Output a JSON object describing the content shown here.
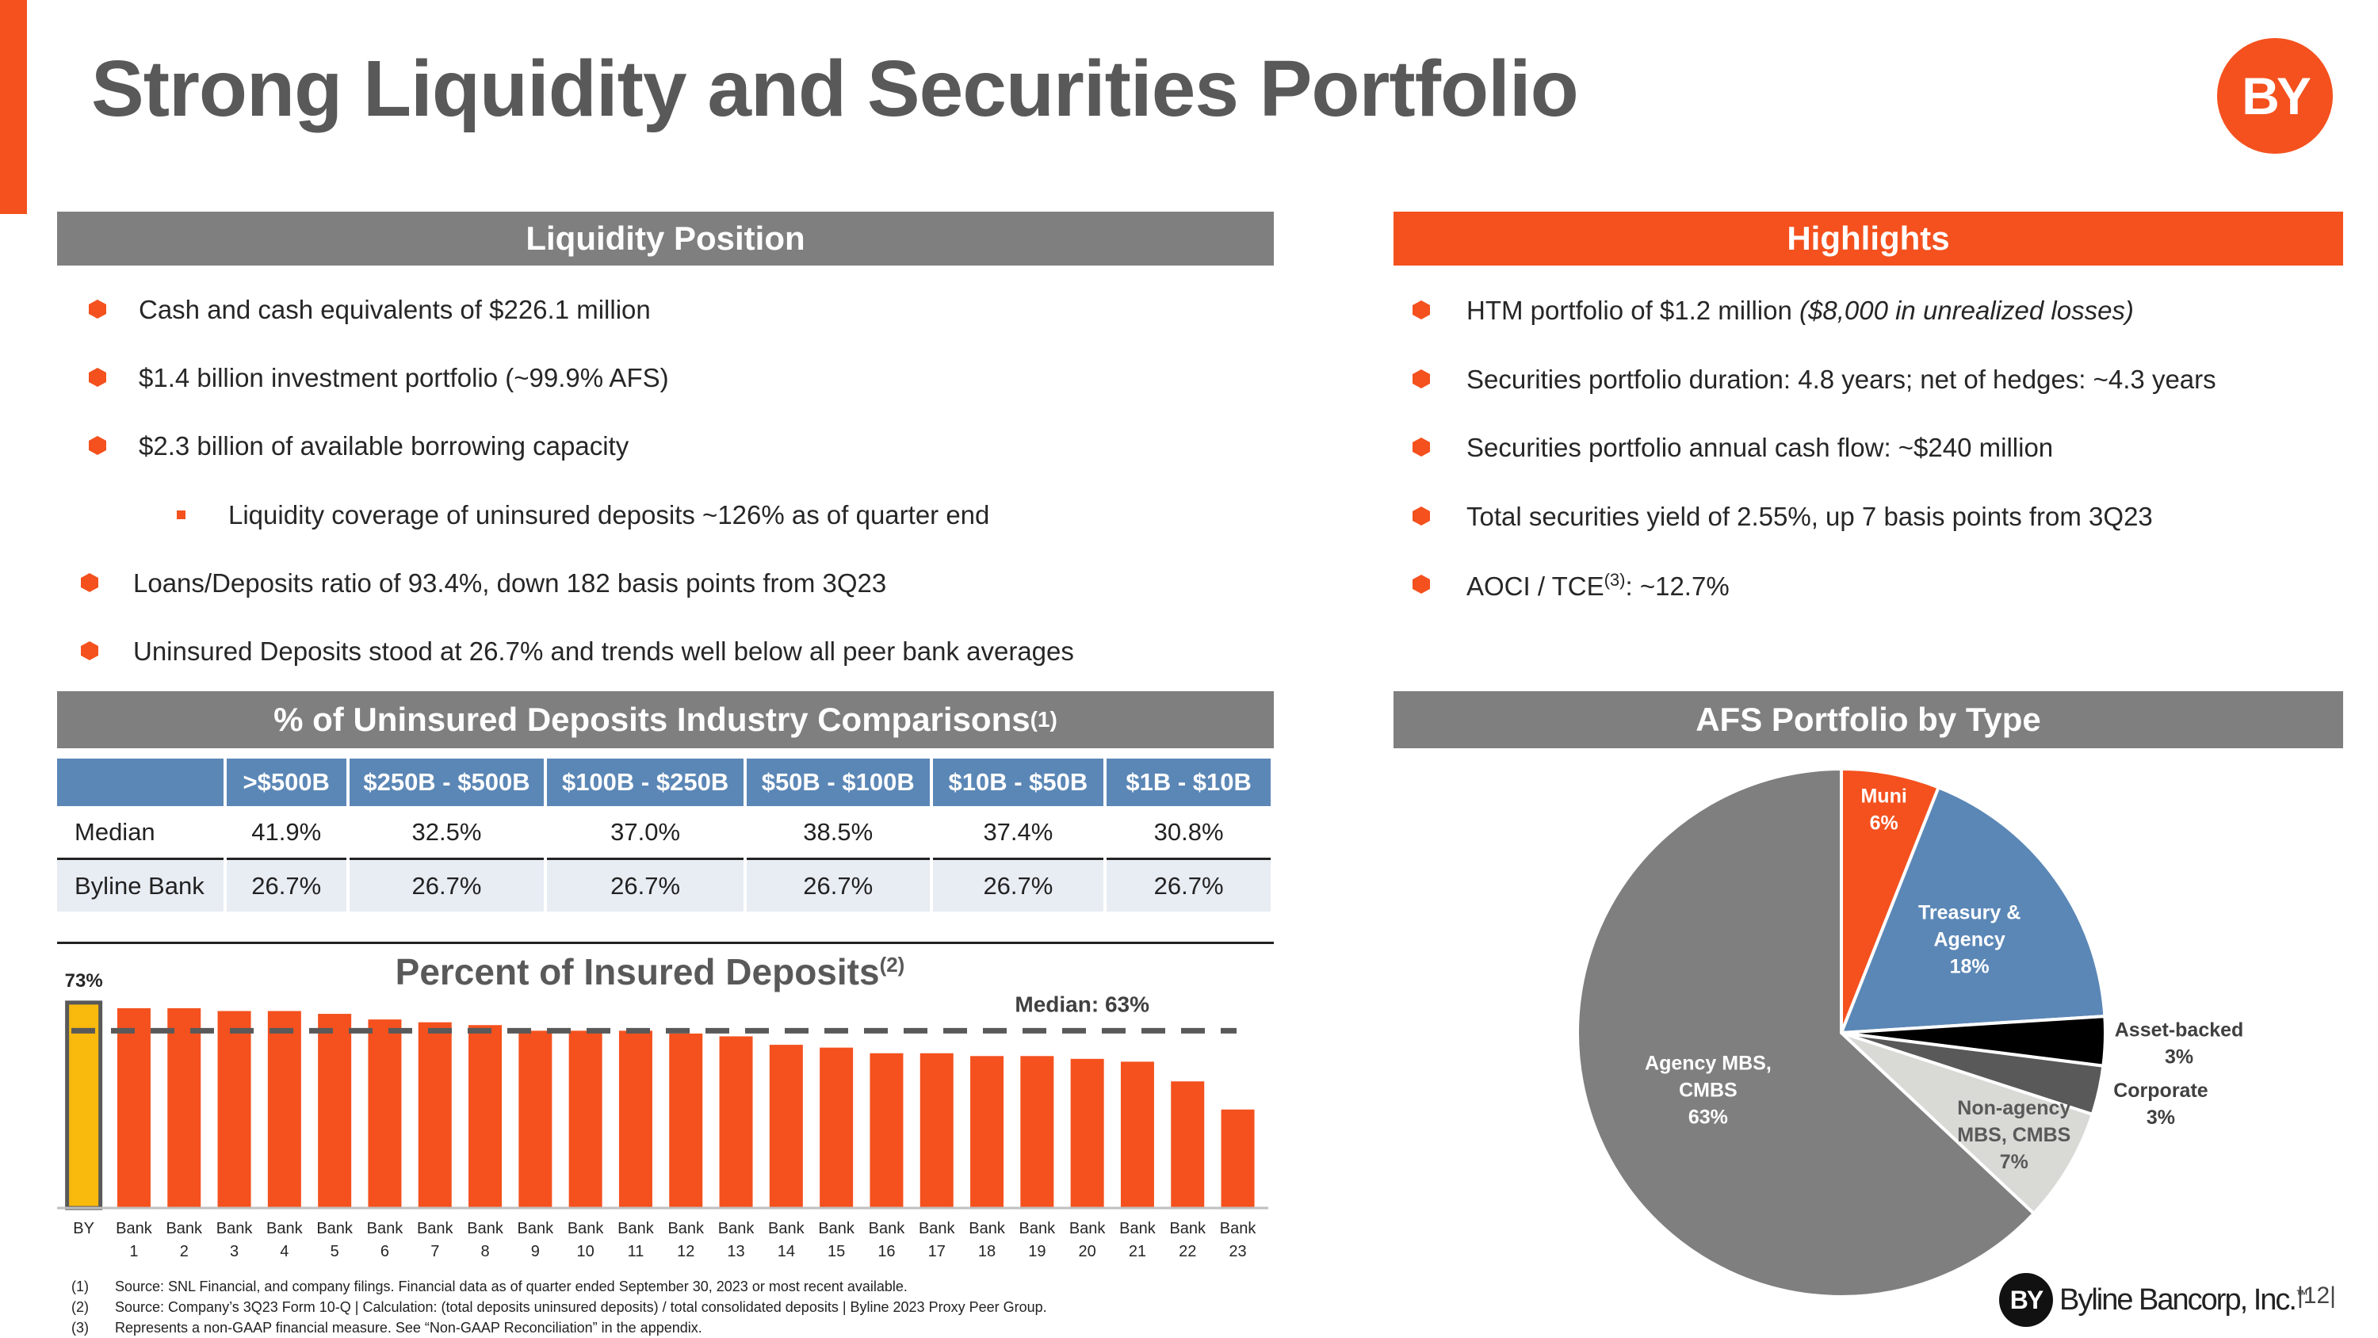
{
  "title": "Strong Liquidity and Securities Portfolio",
  "logo_text": "BY",
  "liquidity": {
    "header": "Liquidity Position",
    "bullets": [
      "Cash and cash equivalents of $226.1 million",
      "$1.4 billion investment portfolio (~99.9% AFS)",
      "$2.3 billion of available borrowing capacity",
      "Liquidity coverage of uninsured deposits ~126% as of quarter end",
      "Loans/Deposits ratio of 93.4%, down 182 basis points from 3Q23",
      "Uninsured Deposits stood at 26.7% and trends well below all peer bank averages"
    ]
  },
  "highlights": {
    "header": "Highlights",
    "b1_main": "HTM portfolio of $1.2 million ",
    "b1_italic": "($8,000 in unrealized losses)",
    "b2": "Securities portfolio duration: 4.8 years; net of hedges: ~4.3 years",
    "b3": "Securities portfolio annual cash flow: ~$240 million",
    "b4": "Total securities yield of 2.55%, up 7 basis points from 3Q23",
    "b5_pre": "AOCI / TCE",
    "b5_sup": "(3)",
    "b5_post": ": ~12.7%"
  },
  "uninsured": {
    "header": "% of Uninsured Deposits Industry Comparisons",
    "header_sup": "(1)",
    "columns": [
      "",
      ">$500B",
      "$250B - $500B",
      "$100B - $250B",
      "$50B - $100B",
      "$10B - $50B",
      "$1B - $10B"
    ],
    "rows": [
      {
        "label": "Median",
        "values": [
          "41.9%",
          "32.5%",
          "37.0%",
          "38.5%",
          "37.4%",
          "30.8%"
        ]
      },
      {
        "label": "Byline Bank",
        "values": [
          "26.7%",
          "26.7%",
          "26.7%",
          "26.7%",
          "26.7%",
          "26.7%"
        ]
      }
    ]
  },
  "insured_chart_title": "Percent of Insured Deposits",
  "insured_chart_sup": "(2)",
  "afs_header": "AFS Portfolio by Type",
  "chart_data": [
    {
      "type": "bar",
      "title": "Percent of Insured Deposits",
      "categories": [
        "BY",
        "Bank 1",
        "Bank 2",
        "Bank 3",
        "Bank 4",
        "Bank 5",
        "Bank 6",
        "Bank 7",
        "Bank 8",
        "Bank 9",
        "Bank 10",
        "Bank 11",
        "Bank 12",
        "Bank 13",
        "Bank 14",
        "Bank 15",
        "Bank 16",
        "Bank 17",
        "Bank 18",
        "Bank 19",
        "Bank 20",
        "Bank 21",
        "Bank 22",
        "Bank 23"
      ],
      "category_lines": [
        [
          "BY"
        ],
        [
          "Bank",
          "1"
        ],
        [
          "Bank",
          "2"
        ],
        [
          "Bank",
          "3"
        ],
        [
          "Bank",
          "4"
        ],
        [
          "Bank",
          "5"
        ],
        [
          "Bank",
          "6"
        ],
        [
          "Bank",
          "7"
        ],
        [
          "Bank",
          "8"
        ],
        [
          "Bank",
          "9"
        ],
        [
          "Bank",
          "10"
        ],
        [
          "Bank",
          "11"
        ],
        [
          "Bank",
          "12"
        ],
        [
          "Bank",
          "13"
        ],
        [
          "Bank",
          "14"
        ],
        [
          "Bank",
          "15"
        ],
        [
          "Bank",
          "16"
        ],
        [
          "Bank",
          "17"
        ],
        [
          "Bank",
          "18"
        ],
        [
          "Bank",
          "19"
        ],
        [
          "Bank",
          "20"
        ],
        [
          "Bank",
          "21"
        ],
        [
          "Bank",
          "22"
        ],
        [
          "Bank",
          "23"
        ]
      ],
      "values": [
        73,
        71,
        71,
        70,
        70,
        69,
        67,
        66,
        65,
        63,
        63,
        63,
        62,
        61,
        58,
        57,
        55,
        55,
        54,
        54,
        53,
        52,
        45,
        35
      ],
      "highlight_label": "73%",
      "median_value": 63,
      "median_label": "Median: 63%",
      "ylim": [
        0,
        80
      ],
      "colors": {
        "highlight": "#f9b90d",
        "bars": "#f4511e",
        "median": "#595959"
      }
    },
    {
      "type": "pie",
      "title": "AFS Portfolio by Type",
      "slices": [
        {
          "name": "Muni",
          "value": 6,
          "label_lines": [
            "Muni",
            "6%"
          ],
          "color": "#f4511e",
          "label_color": "#ffffff"
        },
        {
          "name": "Treasury & Agency",
          "value": 18,
          "label_lines": [
            "Treasury &",
            "Agency",
            "18%"
          ],
          "color": "#5b87b6",
          "label_color": "#ffffff"
        },
        {
          "name": "Asset-backed",
          "value": 3,
          "label_lines": [
            "Asset-backed",
            "3%"
          ],
          "color": "#000000",
          "label_color": "#404040"
        },
        {
          "name": "Corporate",
          "value": 3,
          "label_lines": [
            "Corporate",
            "3%"
          ],
          "color": "#595959",
          "label_color": "#404040"
        },
        {
          "name": "Non-agency MBS, CMBS",
          "value": 7,
          "label_lines": [
            "Non-agency",
            "MBS, CMBS",
            "7%"
          ],
          "color": "#d9d9d6",
          "label_color": "#595959"
        },
        {
          "name": "Agency MBS, CMBS",
          "value": 63,
          "label_lines": [
            "Agency MBS,",
            "CMBS",
            "63%"
          ],
          "color": "#7f7f7f",
          "label_color": "#ffffff"
        }
      ]
    }
  ],
  "footnotes": [
    {
      "num": "(1)",
      "text": "Source: SNL Financial, and company filings. Financial data as of quarter ended September 30, 2023 or most recent available."
    },
    {
      "num": "(2)",
      "text": "Source: Company’s 3Q23 Form 10-Q | Calculation: (total deposits uninsured deposits) / total consolidated deposits | Byline 2023 Proxy Peer Group."
    },
    {
      "num": "(3)",
      "text": "Represents a non-GAAP financial measure.  See “Non-GAAP Reconciliation” in the appendix."
    }
  ],
  "footer": {
    "logo_mark": "BY",
    "company": "Byline Bancorp, Inc.",
    "tm": "™",
    "page": "12"
  }
}
